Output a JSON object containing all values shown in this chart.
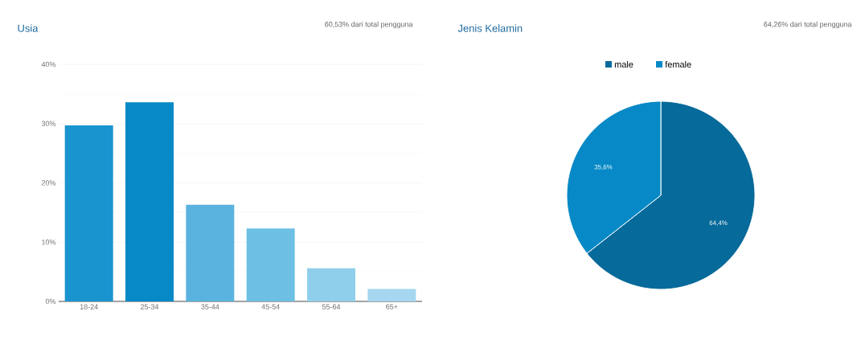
{
  "chart_data": [
    {
      "type": "bar",
      "title": "Usia",
      "subtitle": "60,53% dari total pengguna",
      "categories": [
        "18-24",
        "25-34",
        "35-44",
        "45-54",
        "55-64",
        "65+"
      ],
      "values": [
        29.7,
        33.6,
        16.3,
        12.3,
        5.6,
        2.1
      ],
      "colors": [
        "#1a94cf",
        "#0689c6",
        "#5ab3de",
        "#6dc0e4",
        "#8fcfec",
        "#a5d8f0"
      ],
      "ylim": [
        0,
        40
      ],
      "yticks": [
        {
          "value": 0,
          "label": "0%"
        },
        {
          "value": 10,
          "label": "10%"
        },
        {
          "value": 20,
          "label": "20%"
        },
        {
          "value": 30,
          "label": "30%"
        },
        {
          "value": 40,
          "label": "40%"
        }
      ],
      "grid": true,
      "legend": false
    },
    {
      "type": "pie",
      "title": "Jenis Kelamin",
      "subtitle": "64,26% dari total pengguna",
      "categories": [
        "male",
        "female"
      ],
      "values": [
        64.4,
        35.6
      ],
      "colors": [
        "#066a9a",
        "#0689c6"
      ],
      "value_labels": [
        "64,4%",
        "35,6%"
      ],
      "legend": "top"
    }
  ]
}
